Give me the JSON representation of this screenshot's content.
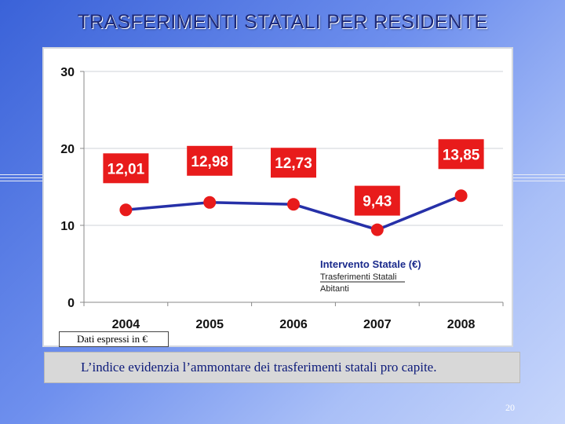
{
  "slide_title": "TRASFERIMENTI STATALI PER RESIDENTE",
  "note_label": "Dati espressi in €",
  "caption": "L’indice evidenzia l’ammontare dei trasferimenti statali pro capite.",
  "page_number": "20",
  "colors": {
    "line": "#2630a8",
    "marker": "#e81b1b",
    "label_bg": "#e81b1b",
    "label_text": "#ffffff",
    "grid": "#cfd3da",
    "legend_title": "#1a2a8c"
  },
  "chart_data": {
    "type": "line",
    "categories": [
      "2004",
      "2005",
      "2006",
      "2007",
      "2008"
    ],
    "series": [
      {
        "name": "Intervento Statale (€)",
        "values": [
          12.01,
          12.98,
          12.73,
          9.43,
          13.85
        ]
      }
    ],
    "data_labels": [
      "12,01",
      "12,98",
      "12,73",
      "9,43",
      "13,85"
    ],
    "y_ticks": [
      0,
      10,
      20,
      30
    ],
    "y_tick_labels": [
      "0",
      "10",
      "20",
      "30"
    ],
    "ylim": [
      0,
      30
    ],
    "grid": true,
    "legend": {
      "title": "Intervento Statale  (€)",
      "numerator": "Trasferimenti Statali",
      "denominator": "Abitanti"
    }
  }
}
